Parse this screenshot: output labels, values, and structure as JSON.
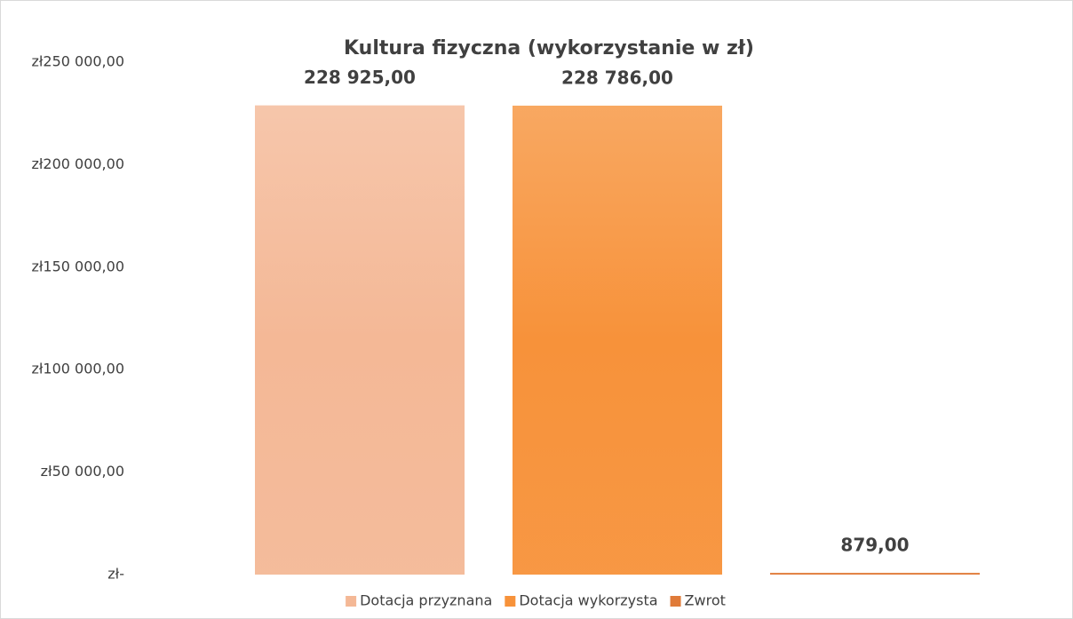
{
  "chart_data": {
    "type": "bar",
    "title": "Kultura fizyczna  (wykorzystanie w zł)",
    "categories": [
      null
    ],
    "series": [
      {
        "name": "Dotacja przyznana",
        "color": "#f4b896",
        "values": [
          228925
        ],
        "value_labels": [
          "228 925,00"
        ]
      },
      {
        "name": "Dotacja wykorzysta",
        "color": "#f7923a",
        "values": [
          228786
        ],
        "value_labels": [
          "228 786,00"
        ]
      },
      {
        "name": "Zwrot",
        "color": "#e07b39",
        "values": [
          879
        ],
        "value_labels": [
          "879,00"
        ]
      }
    ],
    "ylim": [
      0,
      250000
    ],
    "yticks": [
      {
        "value": 0,
        "label": "zł-"
      },
      {
        "value": 50000,
        "label": "zł50 000,00"
      },
      {
        "value": 100000,
        "label": "zł100 000,00"
      },
      {
        "value": 150000,
        "label": "zł150 000,00"
      },
      {
        "value": 200000,
        "label": "zł200 000,00"
      },
      {
        "value": 250000,
        "label": "zł250 000,00"
      }
    ],
    "grid": false,
    "legend": "bottom"
  }
}
